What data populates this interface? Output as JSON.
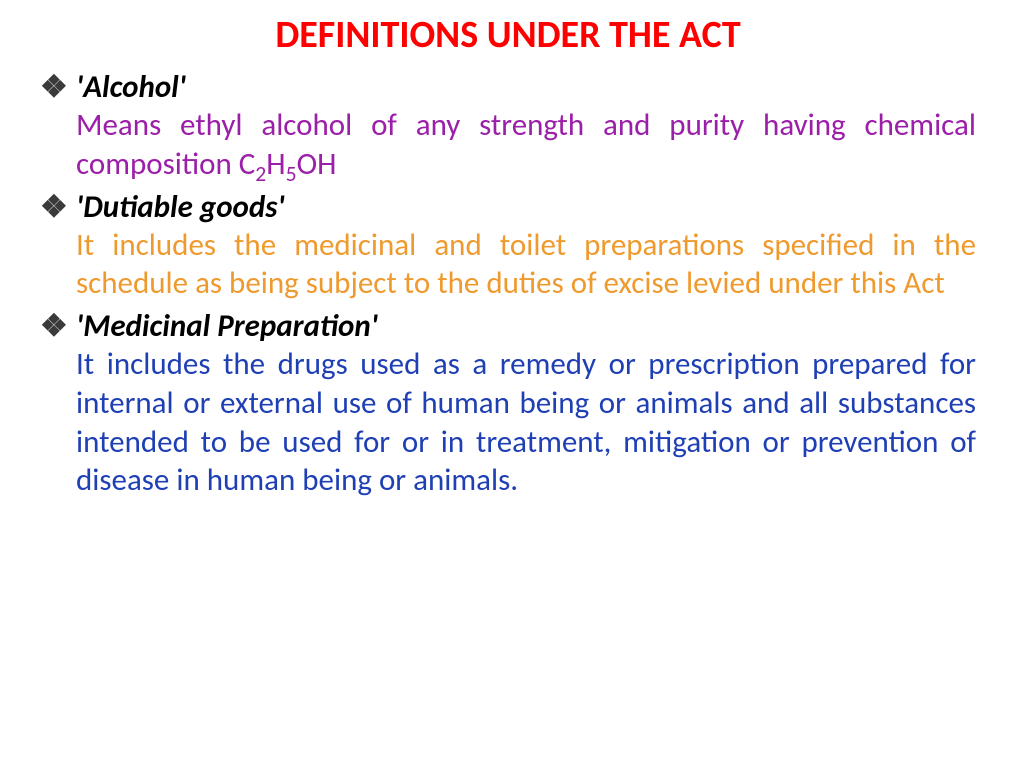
{
  "title": {
    "text": "DEFINITIONS UNDER THE ACT",
    "color": "#ff0000",
    "fontsize": 38
  },
  "bullet": {
    "glyph": "❖",
    "color": "#3a3a3a"
  },
  "term_style": {
    "color": "#000000",
    "fontsize": 31
  },
  "definition_fontsize": 31,
  "items": [
    {
      "term": "'Alcohol'",
      "definition_html": "Means ethyl alcohol of any strength and purity having chemical composition C<span class=\"sub\">2</span>H<span class=\"sub\">5</span>OH",
      "definition_color": "#9b1fa8"
    },
    {
      "term": "'Dutiable goods'",
      "definition_html": " It includes the medicinal and toilet preparations specified in the schedule as being subject to the duties of excise levied under this Act",
      "definition_color": "#ef9a2e"
    },
    {
      "term": "'Medicinal Preparation'",
      "definition_html": "It includes the drugs used as a remedy or prescription prepared for internal or external use of human being or animals and all substances intended to be used for or in treatment, mitigation or prevention of disease in human being or animals.",
      "definition_color": "#1f3fb5"
    }
  ]
}
